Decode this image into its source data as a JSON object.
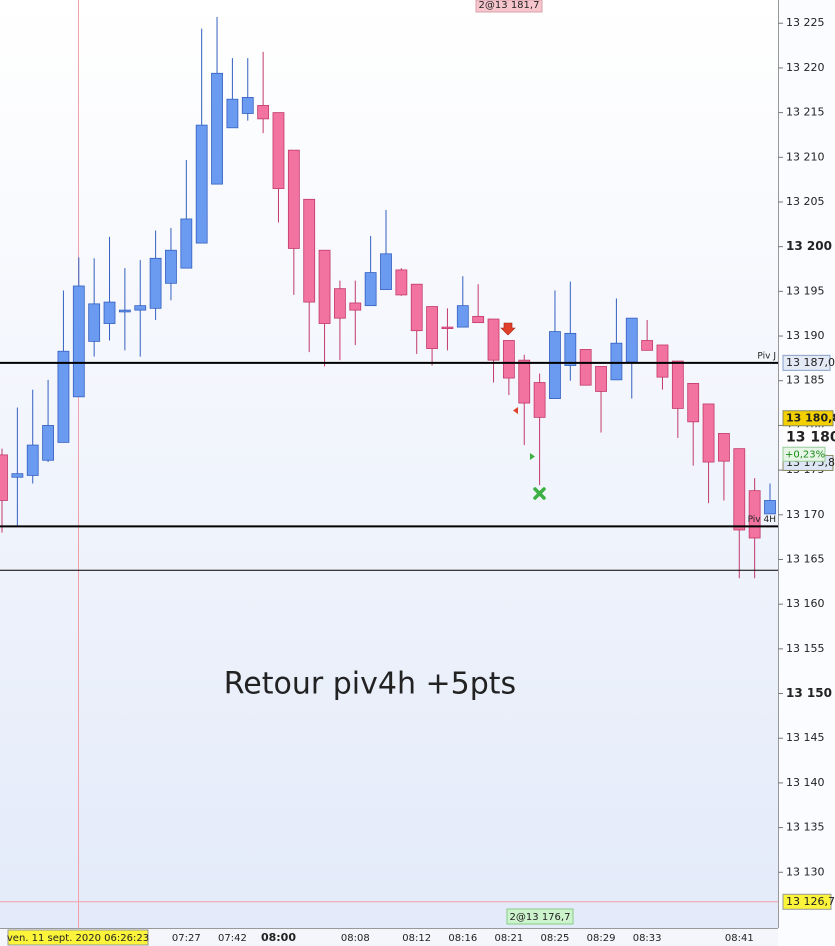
{
  "chart_data": {
    "type": "candlestick",
    "categories": [
      null,
      null,
      null,
      null,
      null,
      null,
      null,
      null,
      null,
      null,
      null,
      null,
      "07:27",
      null,
      null,
      "07:42",
      null,
      null,
      "08:00",
      null,
      null,
      null,
      null,
      "08:08",
      null,
      null,
      null,
      "08:12",
      null,
      null,
      "08:16",
      null,
      null,
      "08:21",
      null,
      null,
      "08:25",
      null,
      null,
      "08:29",
      null,
      null,
      "08:33",
      null,
      null,
      null,
      null,
      null,
      "08:41",
      null,
      null
    ],
    "open": [
      13176.7,
      13174.2,
      13174.4,
      13176.1,
      13178.1,
      13183.2,
      13189.4,
      13191.4,
      13192.7,
      13192.9,
      13193.1,
      13195.9,
      13197.6,
      13200.4,
      13207.0,
      13213.3,
      13214.9,
      13215.8,
      13215.0,
      13210.8,
      13205.3,
      13199.6,
      13195.3,
      13193.7,
      13193.4,
      13195.2,
      13197.4,
      13195.8,
      13193.3,
      13191.0,
      13191.0,
      13192.2,
      13191.9,
      13189.5,
      13187.3,
      13184.8,
      13183.0,
      13186.7,
      13188.5,
      13186.6,
      13185.1,
      13187.1,
      13189.5,
      13189.0,
      13187.2,
      13184.7,
      13182.4,
      13179.1,
      13177.4,
      13172.7,
      13170.1
    ],
    "high": [
      13177.4,
      13182.0,
      13184.0,
      13185.1,
      13195.1,
      13198.8,
      13198.7,
      13201.1,
      13197.6,
      13198.5,
      13201.8,
      13202.1,
      13209.7,
      13224.4,
      13225.7,
      13221.1,
      13221.1,
      13221.8,
      13215.0,
      13210.8,
      13205.3,
      13199.6,
      13196.2,
      13196.2,
      13201.2,
      13204.1,
      13197.6,
      13195.8,
      13193.3,
      13193.1,
      13196.7,
      13195.8,
      13191.9,
      13189.5,
      13187.9,
      13185.8,
      13195.1,
      13196.1,
      13188.5,
      13186.6,
      13194.2,
      13192.0,
      13191.8,
      13189.0,
      13187.2,
      13184.7,
      13182.4,
      13179.1,
      13177.4,
      13174.1,
      13173.5
    ],
    "low": [
      13168.0,
      13168.8,
      13173.5,
      13175.9,
      13178.1,
      13183.2,
      13187.7,
      13189.5,
      13188.4,
      13187.7,
      13191.8,
      13194.0,
      13197.6,
      13200.4,
      13207.0,
      13213.3,
      13214.1,
      13212.7,
      13202.7,
      13194.6,
      13188.2,
      13186.6,
      13187.3,
      13189.0,
      13193.4,
      13195.2,
      13194.5,
      13188.0,
      13186.7,
      13188.4,
      13191.0,
      13191.5,
      13184.8,
      13183.4,
      13177.8,
      13173.3,
      13183.0,
      13185.0,
      13184.5,
      13179.2,
      13185.1,
      13183.0,
      13188.4,
      13184.0,
      13178.6,
      13175.5,
      13171.3,
      13171.6,
      13162.9,
      13162.9,
      13170.1
    ],
    "close": [
      13171.6,
      13174.6,
      13177.8,
      13180.0,
      13188.3,
      13195.6,
      13193.6,
      13193.8,
      13192.9,
      13193.4,
      13198.7,
      13199.6,
      13203.1,
      13213.6,
      13219.4,
      13216.5,
      13216.7,
      13214.3,
      13206.5,
      13199.8,
      13193.8,
      13191.4,
      13192.0,
      13192.9,
      13197.1,
      13199.2,
      13194.6,
      13190.6,
      13188.6,
      13190.9,
      13193.4,
      13191.5,
      13187.3,
      13185.3,
      13182.5,
      13180.9,
      13190.5,
      13190.3,
      13184.5,
      13183.8,
      13189.2,
      13192.0,
      13188.4,
      13185.4,
      13181.9,
      13180.4,
      13175.9,
      13176.0,
      13168.3,
      13167.4,
      13171.6
    ],
    "up_color": "#6b9bf0",
    "down_color": "#f2739f",
    "ylim": [
      13124.1,
      13227.6
    ],
    "yticks": [
      {
        "value": 13130,
        "label": "13 130"
      },
      {
        "value": 13135,
        "label": "13 135"
      },
      {
        "value": 13140,
        "label": "13 140"
      },
      {
        "value": 13145,
        "label": "13 145"
      },
      {
        "value": 13150,
        "label": "13 150"
      },
      {
        "value": 13155,
        "label": "13 155"
      },
      {
        "value": 13160,
        "label": "13 160"
      },
      {
        "value": 13165,
        "label": "13 165"
      },
      {
        "value": 13170,
        "label": "13 170"
      },
      {
        "value": 13175,
        "label": "13 175"
      },
      {
        "value": 13180,
        "label": "13 180"
      },
      {
        "value": 13185,
        "label": "13 185"
      },
      {
        "value": 13190,
        "label": "13 190"
      },
      {
        "value": 13195,
        "label": "13 195"
      },
      {
        "value": 13200,
        "label": "13 200"
      },
      {
        "value": 13205,
        "label": "13 205"
      },
      {
        "value": 13210,
        "label": "13 210"
      },
      {
        "value": 13215,
        "label": "13 215"
      },
      {
        "value": 13220,
        "label": "13 220"
      },
      {
        "value": 13225,
        "label": "13 225"
      }
    ],
    "hlines": [
      {
        "label": "Piv J",
        "value": 13187.0,
        "value_label": "13 187,0"
      },
      {
        "label": "Piv 4H",
        "value": 13168.7
      },
      {
        "value": 13163.8
      }
    ],
    "price_tags": [
      {
        "value": 13180.8,
        "label": "13 180,8",
        "color": "#f5d000"
      },
      {
        "value": 13175.8,
        "label": "13 175,8",
        "color": "#dde6f5"
      }
    ],
    "quote": {
      "price": "13 180,",
      "change": "+0,23%"
    },
    "crosshair": {
      "time_label": "ven. 11 sept. 2020 06:26:23",
      "price": 13126.7,
      "price_label": "13 126,7"
    },
    "orders": {
      "sell": "2@13 181,7",
      "buy": "2@13 176,7"
    },
    "annotation": "Retour piv4h +5pts"
  }
}
